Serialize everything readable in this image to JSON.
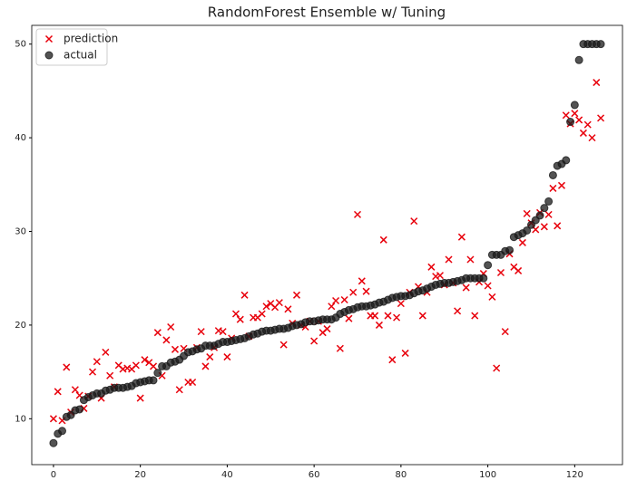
{
  "chart_data": {
    "type": "scatter",
    "title": "RandomForest Ensemble w/ Tuning",
    "x": [
      0,
      1,
      2,
      3,
      4,
      5,
      6,
      7,
      8,
      9,
      10,
      11,
      12,
      13,
      14,
      15,
      16,
      17,
      18,
      19,
      20,
      21,
      22,
      23,
      24,
      25,
      26,
      27,
      28,
      29,
      30,
      31,
      32,
      33,
      34,
      35,
      36,
      37,
      38,
      39,
      40,
      41,
      42,
      43,
      44,
      45,
      46,
      47,
      48,
      49,
      50,
      51,
      52,
      53,
      54,
      55,
      56,
      57,
      58,
      59,
      60,
      61,
      62,
      63,
      64,
      65,
      66,
      67,
      68,
      69,
      70,
      71,
      72,
      73,
      74,
      75,
      76,
      77,
      78,
      79,
      80,
      81,
      82,
      83,
      84,
      85,
      86,
      87,
      88,
      89,
      90,
      91,
      92,
      93,
      94,
      95,
      96,
      97,
      98,
      99,
      100,
      101,
      102,
      103,
      104,
      105,
      106,
      107,
      108,
      109,
      110,
      111,
      112,
      113,
      114,
      115,
      116,
      117,
      118,
      119,
      120,
      121,
      122,
      123,
      124,
      125,
      126
    ],
    "series": [
      {
        "name": "prediction",
        "color": "#e8000b",
        "marker": "x",
        "values": [
          10.0,
          12.9,
          9.8,
          15.5,
          10.7,
          13.1,
          12.5,
          11.1,
          12.4,
          15.0,
          16.1,
          12.2,
          17.1,
          14.6,
          13.4,
          15.7,
          15.3,
          15.4,
          15.3,
          15.7,
          12.2,
          16.3,
          16.0,
          15.6,
          19.2,
          14.6,
          18.4,
          19.8,
          17.4,
          13.1,
          17.5,
          13.9,
          13.9,
          17.6,
          19.3,
          15.6,
          16.6,
          17.6,
          19.4,
          19.3,
          16.6,
          18.6,
          21.2,
          20.6,
          23.2,
          18.8,
          20.8,
          20.8,
          21.2,
          22.0,
          22.3,
          21.9,
          22.4,
          17.9,
          21.7,
          20.2,
          23.2,
          20.0,
          19.8,
          20.4,
          18.3,
          20.4,
          19.2,
          19.6,
          22.0,
          22.6,
          17.5,
          22.7,
          20.7,
          23.5,
          31.8,
          24.7,
          23.6,
          21.0,
          21.0,
          20.0,
          29.1,
          21.0,
          16.3,
          20.8,
          22.3,
          17.0,
          23.5,
          31.1,
          24.1,
          21.0,
          23.5,
          26.2,
          25.2,
          25.3,
          24.3,
          27.0,
          24.5,
          21.5,
          29.4,
          24.0,
          27.0,
          21.0,
          24.6,
          25.5,
          24.2,
          23.0,
          15.4,
          25.6,
          19.3,
          27.6,
          26.2,
          25.8,
          28.8,
          31.9,
          30.9,
          30.2,
          32.0,
          30.5,
          31.8,
          34.6,
          30.6,
          34.9,
          42.4,
          41.5,
          42.6,
          41.9,
          40.5,
          41.4,
          40.0,
          45.9,
          42.1
        ]
      },
      {
        "name": "actual",
        "color": "#1a1a1a",
        "marker": "o",
        "values": [
          7.4,
          8.4,
          8.7,
          10.2,
          10.4,
          10.9,
          11.0,
          12.0,
          12.3,
          12.5,
          12.7,
          12.7,
          13.0,
          13.1,
          13.3,
          13.3,
          13.3,
          13.4,
          13.5,
          13.8,
          13.9,
          14.0,
          14.1,
          14.1,
          14.9,
          15.6,
          15.6,
          16.0,
          16.1,
          16.3,
          16.7,
          17.1,
          17.2,
          17.4,
          17.5,
          17.8,
          17.8,
          17.8,
          18.0,
          18.2,
          18.2,
          18.3,
          18.4,
          18.5,
          18.6,
          18.8,
          19.0,
          19.1,
          19.3,
          19.4,
          19.4,
          19.5,
          19.6,
          19.6,
          19.7,
          19.9,
          20.0,
          20.1,
          20.3,
          20.4,
          20.4,
          20.5,
          20.6,
          20.6,
          20.6,
          20.8,
          21.2,
          21.4,
          21.6,
          21.7,
          21.9,
          22.0,
          22.0,
          22.1,
          22.2,
          22.4,
          22.5,
          22.7,
          22.9,
          23.0,
          23.1,
          23.1,
          23.2,
          23.4,
          23.6,
          23.7,
          23.9,
          24.1,
          24.3,
          24.4,
          24.5,
          24.5,
          24.6,
          24.7,
          24.8,
          25.0,
          25.0,
          25.0,
          25.0,
          25.0,
          26.4,
          27.5,
          27.5,
          27.5,
          27.9,
          28.0,
          29.4,
          29.6,
          29.8,
          30.1,
          30.7,
          31.2,
          31.7,
          32.5,
          33.2,
          36.0,
          37.0,
          37.2,
          37.6,
          41.7,
          43.5,
          48.3,
          50,
          50,
          50,
          50,
          50
        ]
      }
    ],
    "xlim": [
      -5,
      131
    ],
    "ylim": [
      5.1,
      52.0
    ],
    "xticks": [
      0,
      20,
      40,
      60,
      80,
      100,
      120
    ],
    "yticks": [
      10,
      20,
      30,
      40,
      50
    ],
    "legend": "upper left"
  }
}
